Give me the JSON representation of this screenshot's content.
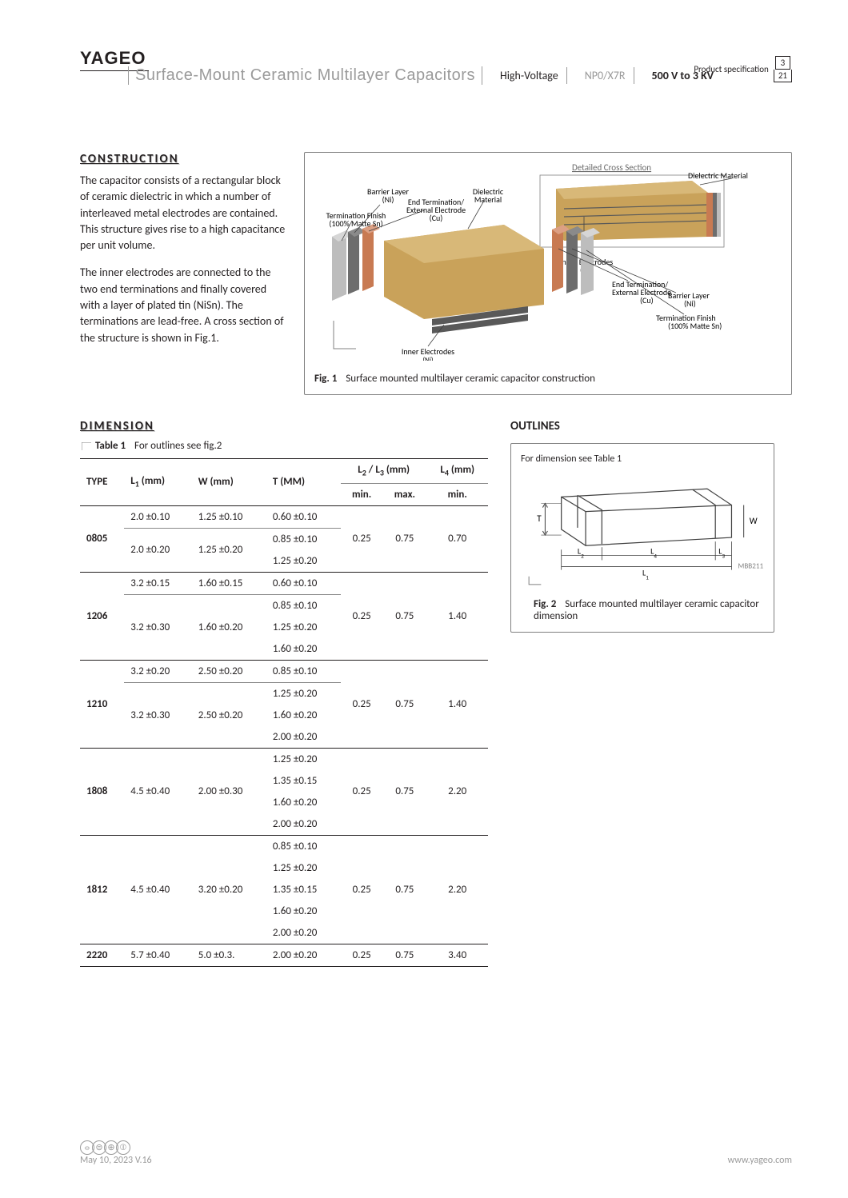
{
  "header": {
    "brand": "YAGEO",
    "product_spec_label": "Product specification",
    "page_current": "3",
    "page_total": "21",
    "title_main": "Surface-Mount Ceramic Multilayer Capacitors",
    "seg_high_voltage": "High-Voltage",
    "seg_dielectric": "NP0/X7R",
    "seg_range": "500 V to 3 KV"
  },
  "construction": {
    "heading": "CONSTRUCTION",
    "p1": "The capacitor consists of a rectangular block of ceramic dielectric in which a number of interleaved metal electrodes are contained. This structure gives rise to a high capacitance per unit volume.",
    "p2": "The inner electrodes are connected to the two end terminations and finally covered with a layer of plated tin (NiSn). The terminations are lead-free. A cross section of the structure is shown in Fig.1."
  },
  "fig1": {
    "caption_num": "Fig. 1",
    "caption_text": "Surface mounted multilayer ceramic capacitor construction",
    "cross_section_title": "Detailed Cross Section",
    "labels": {
      "barrier_layer": "Barrier Layer\n(Ni)",
      "term_finish": "Termination Finish\n(100% Matte Sn)",
      "end_term": "End Termination/\nExternal Electrode\n(Cu)",
      "dielectric": "Dielectric\nMaterial",
      "inner_electrodes": "Inner Electrodes\n(Ni)",
      "dielectric_r": "Dielectric Material",
      "inner_electrodes_r": "Inner Electrodes\n(Ni)",
      "end_term_r": "End Termination/\nExternal Electrode\n(Cu)",
      "barrier_layer_r": "Barrier Layer\n(Ni)",
      "term_finish_r": "Termination Finish\n(100% Matte Sn)"
    },
    "colors": {
      "ceramic_body": "#c9a25a",
      "ceramic_body_dark": "#a8823d",
      "electrode": "#595959",
      "electrode_light": "#6e6e6e",
      "cu": "#c87a52",
      "ni": "#6d6d6d",
      "sn": "#bdbdbd",
      "cross_bg": "#e8dbc0"
    }
  },
  "dimension": {
    "heading": "DIMENSION",
    "table_caption_num": "Table 1",
    "table_caption_text": "For outlines see fig.2",
    "columns": {
      "type": "TYPE",
      "l1": "L",
      "l1_unit": " (mm)",
      "w": "W (mm)",
      "t": "T (MM)",
      "l23": "L",
      "l23_unit": " (mm)",
      "l4": "L",
      "l4_unit": " (mm)",
      "min": "min.",
      "max": "max."
    },
    "rows": [
      {
        "type": "0805",
        "blocks": [
          {
            "l1": "2.0 ±0.10",
            "w": "1.25 ±0.10",
            "t": [
              "0.60 ±0.10"
            ]
          },
          {
            "l1": "2.0 ±0.20",
            "w": "1.25 ±0.20",
            "t": [
              "0.85 ±0.10",
              "1.25 ±0.20"
            ]
          }
        ],
        "l23min": "0.25",
        "l23max": "0.75",
        "l4min": "0.70"
      },
      {
        "type": "1206",
        "blocks": [
          {
            "l1": "3.2 ±0.15",
            "w": "1.60 ±0.15",
            "t": [
              "0.60 ±0.10"
            ]
          },
          {
            "l1": "3.2 ±0.30",
            "w": "1.60 ±0.20",
            "t": [
              "0.85 ±0.10",
              "1.25 ±0.20",
              "1.60 ±0.20"
            ]
          }
        ],
        "l23min": "0.25",
        "l23max": "0.75",
        "l4min": "1.40"
      },
      {
        "type": "1210",
        "blocks": [
          {
            "l1": "3.2 ±0.20",
            "w": "2.50 ±0.20",
            "t": [
              "0.85 ±0.10"
            ]
          },
          {
            "l1": "3.2 ±0.30",
            "w": "2.50 ±0.20",
            "t": [
              "1.25 ±0.20",
              "1.60 ±0.20",
              "2.00 ±0.20"
            ]
          }
        ],
        "l23min": "0.25",
        "l23max": "0.75",
        "l4min": "1.40"
      },
      {
        "type": "1808",
        "blocks": [
          {
            "l1": "4.5 ±0.40",
            "w": "2.00 ±0.30",
            "t": [
              "1.25 ±0.20",
              "1.35 ±0.15",
              "1.60 ±0.20",
              "2.00 ±0.20"
            ]
          }
        ],
        "l23min": "0.25",
        "l23max": "0.75",
        "l4min": "2.20"
      },
      {
        "type": "1812",
        "blocks": [
          {
            "l1": "4.5 ±0.40",
            "w": "3.20 ±0.20",
            "t": [
              "0.85 ±0.10",
              "1.25 ±0.20",
              "1.35 ±0.15",
              "1.60 ±0.20",
              "2.00 ±0.20"
            ]
          }
        ],
        "l23min": "0.25",
        "l23max": "0.75",
        "l4min": "2.20"
      },
      {
        "type": "2220",
        "blocks": [
          {
            "l1": "5.7 ±0.40",
            "w": "5.0 ±0.3.",
            "t": [
              "2.00 ±0.20"
            ]
          }
        ],
        "l23min": "0.25",
        "l23max": "0.75",
        "l4min": "3.40"
      }
    ]
  },
  "outlines": {
    "heading": "OUTLINES",
    "note": "For dimension see Table 1",
    "caption_num": "Fig. 2",
    "caption_text": "Surface mounted multilayer ceramic capacitor dimension",
    "dims": {
      "T": "T",
      "W": "W",
      "L1": "L1",
      "L2": "L2",
      "L3": "L3",
      "L4": "L4"
    },
    "code": "MBB211"
  },
  "footer": {
    "date_version": "May 10, 2023  V.16",
    "url": "www.yageo.com"
  }
}
